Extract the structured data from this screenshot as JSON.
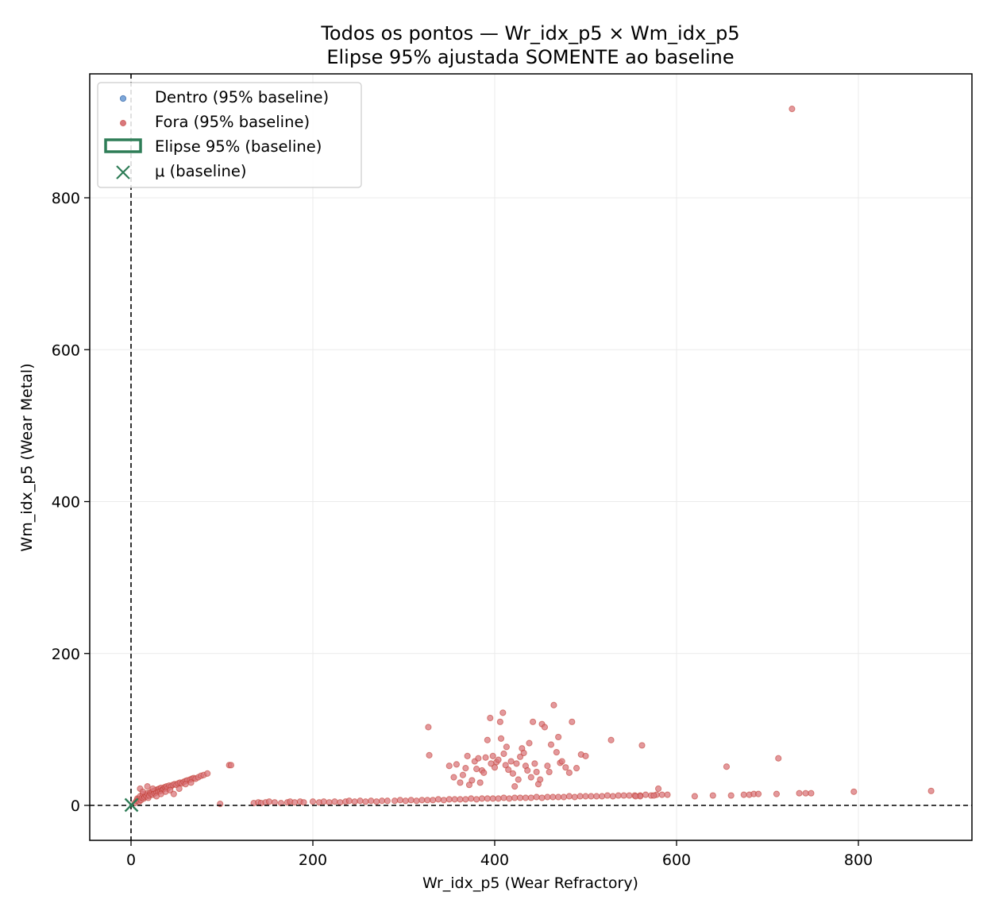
{
  "chart_data": {
    "type": "scatter",
    "title": "Todos os pontos — Wr_idx_p5 × Wm_idx_p5",
    "subtitle": "Elipse 95% ajustada SOMENTE ao baseline",
    "xlabel": "Wr_idx_p5 (Wear Refractory)",
    "ylabel": "Wm_idx_p5 (Wear Metal)",
    "xlim": [
      -45,
      920
    ],
    "ylim": [
      -45,
      960
    ],
    "xticks": [
      0,
      200,
      400,
      600,
      800
    ],
    "yticks": [
      0,
      200,
      400,
      600,
      800
    ],
    "grid": true,
    "legend_position": "upper-left",
    "reference_lines": {
      "x": 0,
      "y": 0,
      "style": "dashed"
    },
    "colors": {
      "inside": "#7da7d9",
      "outside": "#d9777c",
      "outside_edge": "#c0392b",
      "ellipse": "#2e7d57",
      "mean": "#2e7d57"
    },
    "legend": [
      {
        "label": "Dentro (95% baseline)",
        "marker": "dot",
        "color": "#7da7d9"
      },
      {
        "label": "Fora (95% baseline)",
        "marker": "dot",
        "color": "#d9777c"
      },
      {
        "label": "Elipse 95% (baseline)",
        "marker": "rect",
        "color": "#2e7d57"
      },
      {
        "label": "μ (baseline)",
        "marker": "x",
        "color": "#2e7d57"
      }
    ],
    "mean": {
      "x": 0.5,
      "y": 0.5
    },
    "series": [
      {
        "name": "Fora (95% baseline)",
        "points": [
          [
            4,
            3
          ],
          [
            6,
            6
          ],
          [
            7,
            9
          ],
          [
            8,
            8
          ],
          [
            9,
            5
          ],
          [
            10,
            12
          ],
          [
            11,
            7
          ],
          [
            12,
            10
          ],
          [
            13,
            15
          ],
          [
            14,
            9
          ],
          [
            15,
            11
          ],
          [
            16,
            14
          ],
          [
            17,
            12
          ],
          [
            18,
            16
          ],
          [
            19,
            10
          ],
          [
            20,
            13
          ],
          [
            21,
            17
          ],
          [
            22,
            15
          ],
          [
            23,
            18
          ],
          [
            24,
            14
          ],
          [
            25,
            19
          ],
          [
            26,
            16
          ],
          [
            27,
            20
          ],
          [
            28,
            17
          ],
          [
            29,
            21
          ],
          [
            30,
            18
          ],
          [
            31,
            22
          ],
          [
            32,
            19
          ],
          [
            33,
            23
          ],
          [
            34,
            20
          ],
          [
            35,
            21
          ],
          [
            36,
            22
          ],
          [
            37,
            24
          ],
          [
            38,
            23
          ],
          [
            39,
            25
          ],
          [
            40,
            22
          ],
          [
            42,
            26
          ],
          [
            44,
            25
          ],
          [
            46,
            27
          ],
          [
            48,
            28
          ],
          [
            50,
            27
          ],
          [
            52,
            29
          ],
          [
            54,
            30
          ],
          [
            56,
            29
          ],
          [
            58,
            31
          ],
          [
            60,
            32
          ],
          [
            62,
            33
          ],
          [
            65,
            34
          ],
          [
            67,
            35
          ],
          [
            69,
            36
          ],
          [
            71,
            35
          ],
          [
            74,
            37
          ],
          [
            77,
            39
          ],
          [
            80,
            40
          ],
          [
            84,
            42
          ],
          [
            10,
            22
          ],
          [
            13,
            18
          ],
          [
            18,
            25
          ],
          [
            24,
            22
          ],
          [
            28,
            12
          ],
          [
            33,
            15
          ],
          [
            38,
            18
          ],
          [
            43,
            20
          ],
          [
            47,
            15
          ],
          [
            53,
            22
          ],
          [
            60,
            28
          ],
          [
            66,
            30
          ],
          [
            108,
            53
          ],
          [
            110,
            53
          ],
          [
            98,
            2
          ],
          [
            135,
            3
          ],
          [
            140,
            4
          ],
          [
            143,
            3
          ],
          [
            148,
            4
          ],
          [
            152,
            5
          ],
          [
            158,
            4
          ],
          [
            165,
            3
          ],
          [
            172,
            4
          ],
          [
            175,
            5
          ],
          [
            180,
            4
          ],
          [
            186,
            5
          ],
          [
            190,
            4
          ],
          [
            200,
            5
          ],
          [
            207,
            4
          ],
          [
            212,
            5
          ],
          [
            218,
            4
          ],
          [
            224,
            5
          ],
          [
            230,
            4
          ],
          [
            236,
            5
          ],
          [
            240,
            6
          ],
          [
            246,
            5
          ],
          [
            252,
            6
          ],
          [
            258,
            5
          ],
          [
            264,
            6
          ],
          [
            270,
            5
          ],
          [
            276,
            6
          ],
          [
            282,
            6
          ],
          [
            290,
            6
          ],
          [
            296,
            7
          ],
          [
            302,
            6
          ],
          [
            308,
            7
          ],
          [
            314,
            6
          ],
          [
            320,
            7
          ],
          [
            326,
            7
          ],
          [
            332,
            7
          ],
          [
            338,
            8
          ],
          [
            344,
            7
          ],
          [
            350,
            8
          ],
          [
            356,
            8
          ],
          [
            362,
            8
          ],
          [
            368,
            8
          ],
          [
            374,
            9
          ],
          [
            380,
            8
          ],
          [
            386,
            9
          ],
          [
            392,
            9
          ],
          [
            398,
            9
          ],
          [
            404,
            9
          ],
          [
            410,
            10
          ],
          [
            416,
            9
          ],
          [
            422,
            10
          ],
          [
            428,
            10
          ],
          [
            434,
            10
          ],
          [
            440,
            10
          ],
          [
            446,
            11
          ],
          [
            452,
            10
          ],
          [
            458,
            11
          ],
          [
            464,
            11
          ],
          [
            470,
            11
          ],
          [
            476,
            11
          ],
          [
            482,
            12
          ],
          [
            488,
            11
          ],
          [
            494,
            12
          ],
          [
            500,
            12
          ],
          [
            506,
            12
          ],
          [
            512,
            12
          ],
          [
            518,
            12
          ],
          [
            524,
            13
          ],
          [
            530,
            12
          ],
          [
            536,
            13
          ],
          [
            542,
            13
          ],
          [
            548,
            13
          ],
          [
            554,
            13
          ],
          [
            560,
            13
          ],
          [
            566,
            14
          ],
          [
            572,
            13
          ],
          [
            578,
            14
          ],
          [
            584,
            14
          ],
          [
            590,
            14
          ],
          [
            327,
            103
          ],
          [
            328,
            66
          ],
          [
            350,
            52
          ],
          [
            355,
            37
          ],
          [
            358,
            54
          ],
          [
            362,
            30
          ],
          [
            365,
            40
          ],
          [
            368,
            49
          ],
          [
            370,
            65
          ],
          [
            372,
            27
          ],
          [
            375,
            33
          ],
          [
            378,
            58
          ],
          [
            380,
            48
          ],
          [
            382,
            62
          ],
          [
            384,
            30
          ],
          [
            386,
            46
          ],
          [
            388,
            43
          ],
          [
            390,
            63
          ],
          [
            392,
            86
          ],
          [
            395,
            115
          ],
          [
            396,
            55
          ],
          [
            398,
            65
          ],
          [
            400,
            50
          ],
          [
            402,
            57
          ],
          [
            404,
            60
          ],
          [
            406,
            110
          ],
          [
            407,
            88
          ],
          [
            409,
            122
          ],
          [
            410,
            68
          ],
          [
            412,
            53
          ],
          [
            413,
            77
          ],
          [
            415,
            47
          ],
          [
            418,
            58
          ],
          [
            420,
            42
          ],
          [
            422,
            25
          ],
          [
            424,
            55
          ],
          [
            426,
            34
          ],
          [
            428,
            64
          ],
          [
            430,
            75
          ],
          [
            432,
            69
          ],
          [
            434,
            52
          ],
          [
            436,
            46
          ],
          [
            438,
            82
          ],
          [
            440,
            37
          ],
          [
            442,
            110
          ],
          [
            444,
            55
          ],
          [
            446,
            44
          ],
          [
            448,
            28
          ],
          [
            450,
            34
          ],
          [
            452,
            107
          ],
          [
            455,
            103
          ],
          [
            458,
            52
          ],
          [
            460,
            44
          ],
          [
            462,
            80
          ],
          [
            465,
            132
          ],
          [
            468,
            70
          ],
          [
            470,
            90
          ],
          [
            472,
            56
          ],
          [
            474,
            58
          ],
          [
            478,
            50
          ],
          [
            482,
            43
          ],
          [
            485,
            110
          ],
          [
            490,
            49
          ],
          [
            495,
            67
          ],
          [
            500,
            65
          ],
          [
            528,
            86
          ],
          [
            562,
            79
          ],
          [
            655,
            51
          ],
          [
            712,
            62
          ],
          [
            620,
            12
          ],
          [
            640,
            13
          ],
          [
            660,
            13
          ],
          [
            674,
            14
          ],
          [
            680,
            14
          ],
          [
            685,
            15
          ],
          [
            690,
            15
          ],
          [
            710,
            15
          ],
          [
            735,
            16
          ],
          [
            742,
            16
          ],
          [
            748,
            16
          ],
          [
            795,
            18
          ],
          [
            880,
            19
          ],
          [
            727,
            917
          ],
          [
            580,
            22
          ],
          [
            575,
            13
          ],
          [
            560,
            12
          ],
          [
            555,
            12
          ]
        ]
      }
    ]
  }
}
